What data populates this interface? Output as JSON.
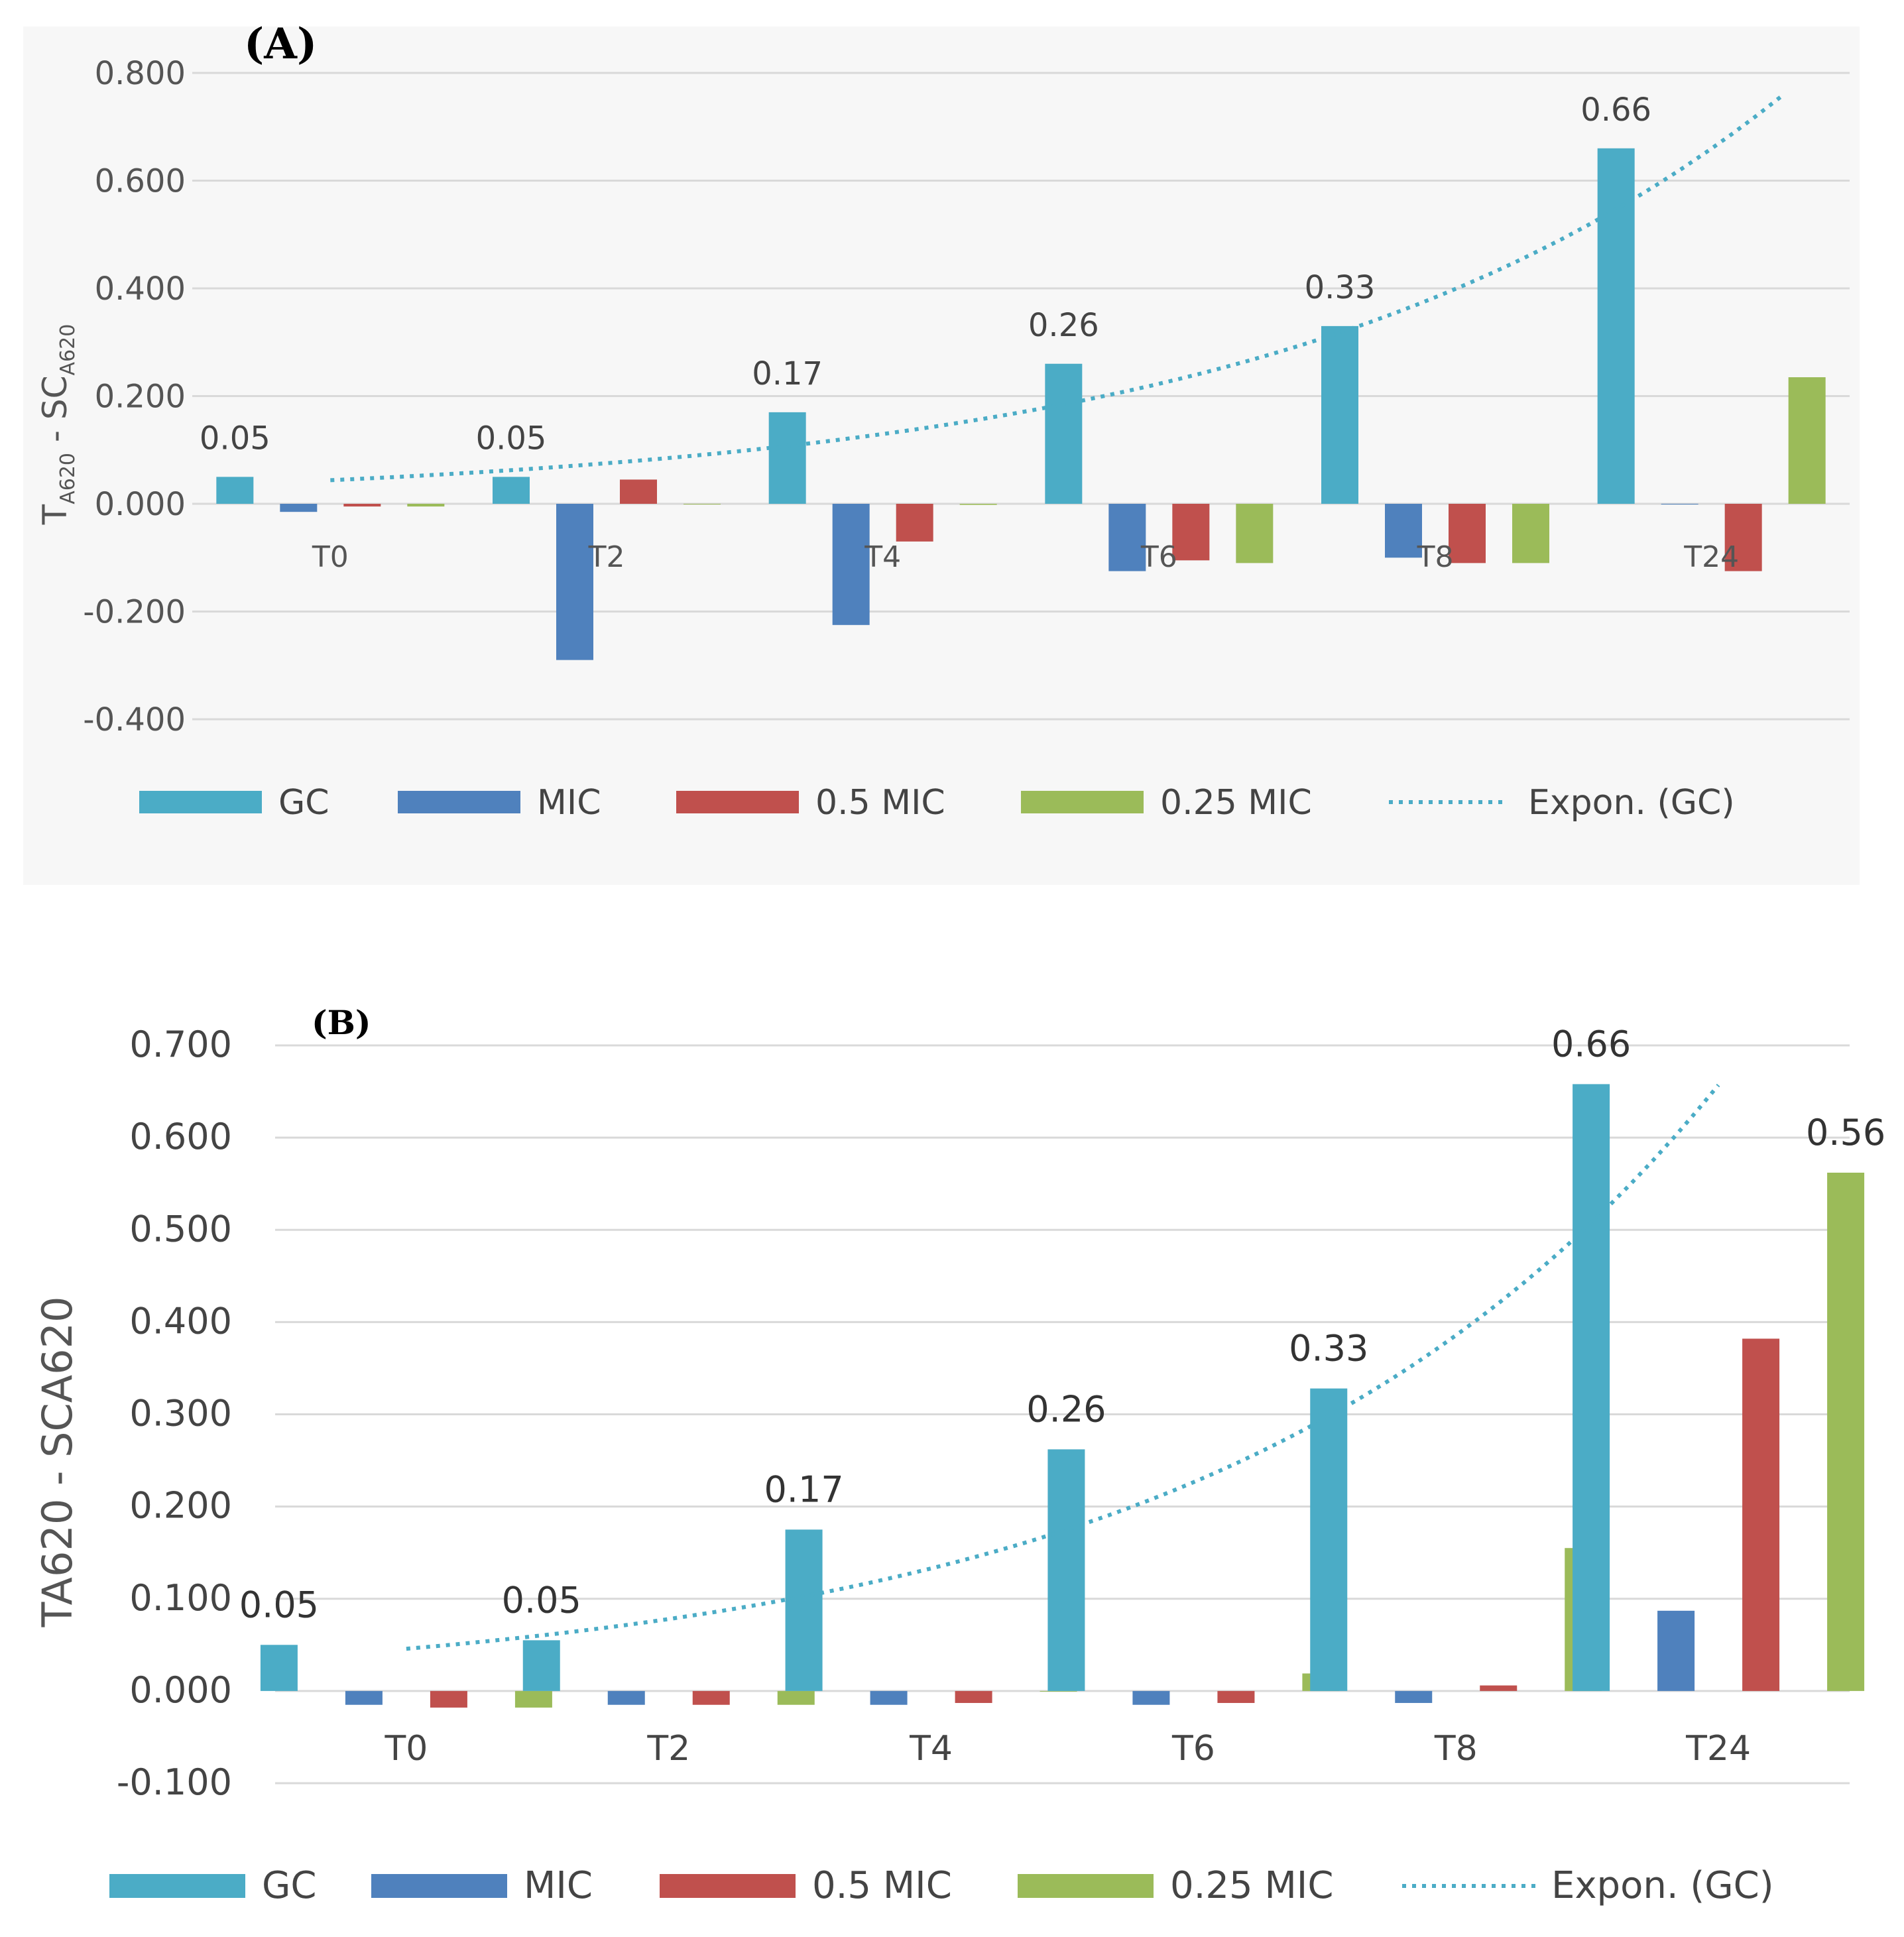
{
  "colors": {
    "GC": "#4bacc6",
    "MIC": "#4f81bd",
    "0.5 MIC": "#c0504d",
    "0.25 MIC": "#9bbb59",
    "trend": "#4bacc6",
    "grid": "#d9d9d9"
  },
  "chart_data": [
    {
      "type": "bar",
      "panel_label": "(A)",
      "ylabel_main": "T",
      "ylabel_sub1": "A620",
      "ylabel_mid": " - SC",
      "ylabel_sub2": "A620",
      "categories": [
        "T0",
        "T2",
        "T4",
        "T6",
        "T8",
        "T24"
      ],
      "ylim": [
        -0.4,
        0.8
      ],
      "yticks": [
        "0.800",
        "0.600",
        "0.400",
        "0.200",
        "0.000",
        "-0.200",
        "-0.400"
      ],
      "grid": true,
      "legend_position": "bottom",
      "series": [
        {
          "name": "GC",
          "values": [
            0.05,
            0.05,
            0.17,
            0.26,
            0.33,
            0.66
          ]
        },
        {
          "name": "MIC",
          "values": [
            -0.015,
            -0.29,
            -0.225,
            -0.125,
            -0.1,
            0.0
          ]
        },
        {
          "name": "0.5 MIC",
          "values": [
            -0.005,
            0.045,
            -0.07,
            -0.105,
            -0.11,
            -0.125
          ]
        },
        {
          "name": "0.25 MIC",
          "values": [
            -0.005,
            0.0,
            -0.002,
            -0.11,
            -0.11,
            0.235
          ]
        }
      ],
      "data_labels": [
        "0.05",
        "0.05",
        "0.17",
        "0.26",
        "0.33",
        "0.66"
      ],
      "trendline": {
        "name": "Expon. (GC)",
        "of": "GC",
        "type": "exponential"
      }
    },
    {
      "type": "bar",
      "panel_label": "(B)",
      "ylabel": "TA620 - SCA620",
      "categories": [
        "T0",
        "T2",
        "T4",
        "T6",
        "T8",
        "T24"
      ],
      "ylim": [
        -0.1,
        0.7
      ],
      "yticks": [
        "0.700",
        "0.600",
        "0.500",
        "0.400",
        "0.300",
        "0.200",
        "0.100",
        "0.000",
        "-0.100"
      ],
      "grid": true,
      "legend_position": "bottom",
      "series": [
        {
          "name": "GC",
          "values": [
            0.05,
            0.055,
            0.175,
            0.262,
            0.328,
            0.658
          ]
        },
        {
          "name": "MIC",
          "values": [
            -0.015,
            -0.015,
            -0.015,
            -0.015,
            -0.013,
            0.087
          ]
        },
        {
          "name": "0.5 MIC",
          "values": [
            -0.018,
            -0.015,
            -0.013,
            -0.013,
            0.006,
            0.382
          ]
        },
        {
          "name": "0.25 MIC",
          "values": [
            -0.018,
            -0.015,
            0.0,
            0.019,
            0.155,
            0.562
          ]
        }
      ],
      "data_labels": [
        "0.05",
        "0.05",
        "0.17",
        "0.26",
        "0.33",
        "0.66"
      ],
      "extra_label": "0.56",
      "trendline": {
        "name": "Expon. (GC)",
        "of": "GC",
        "type": "exponential"
      }
    }
  ]
}
